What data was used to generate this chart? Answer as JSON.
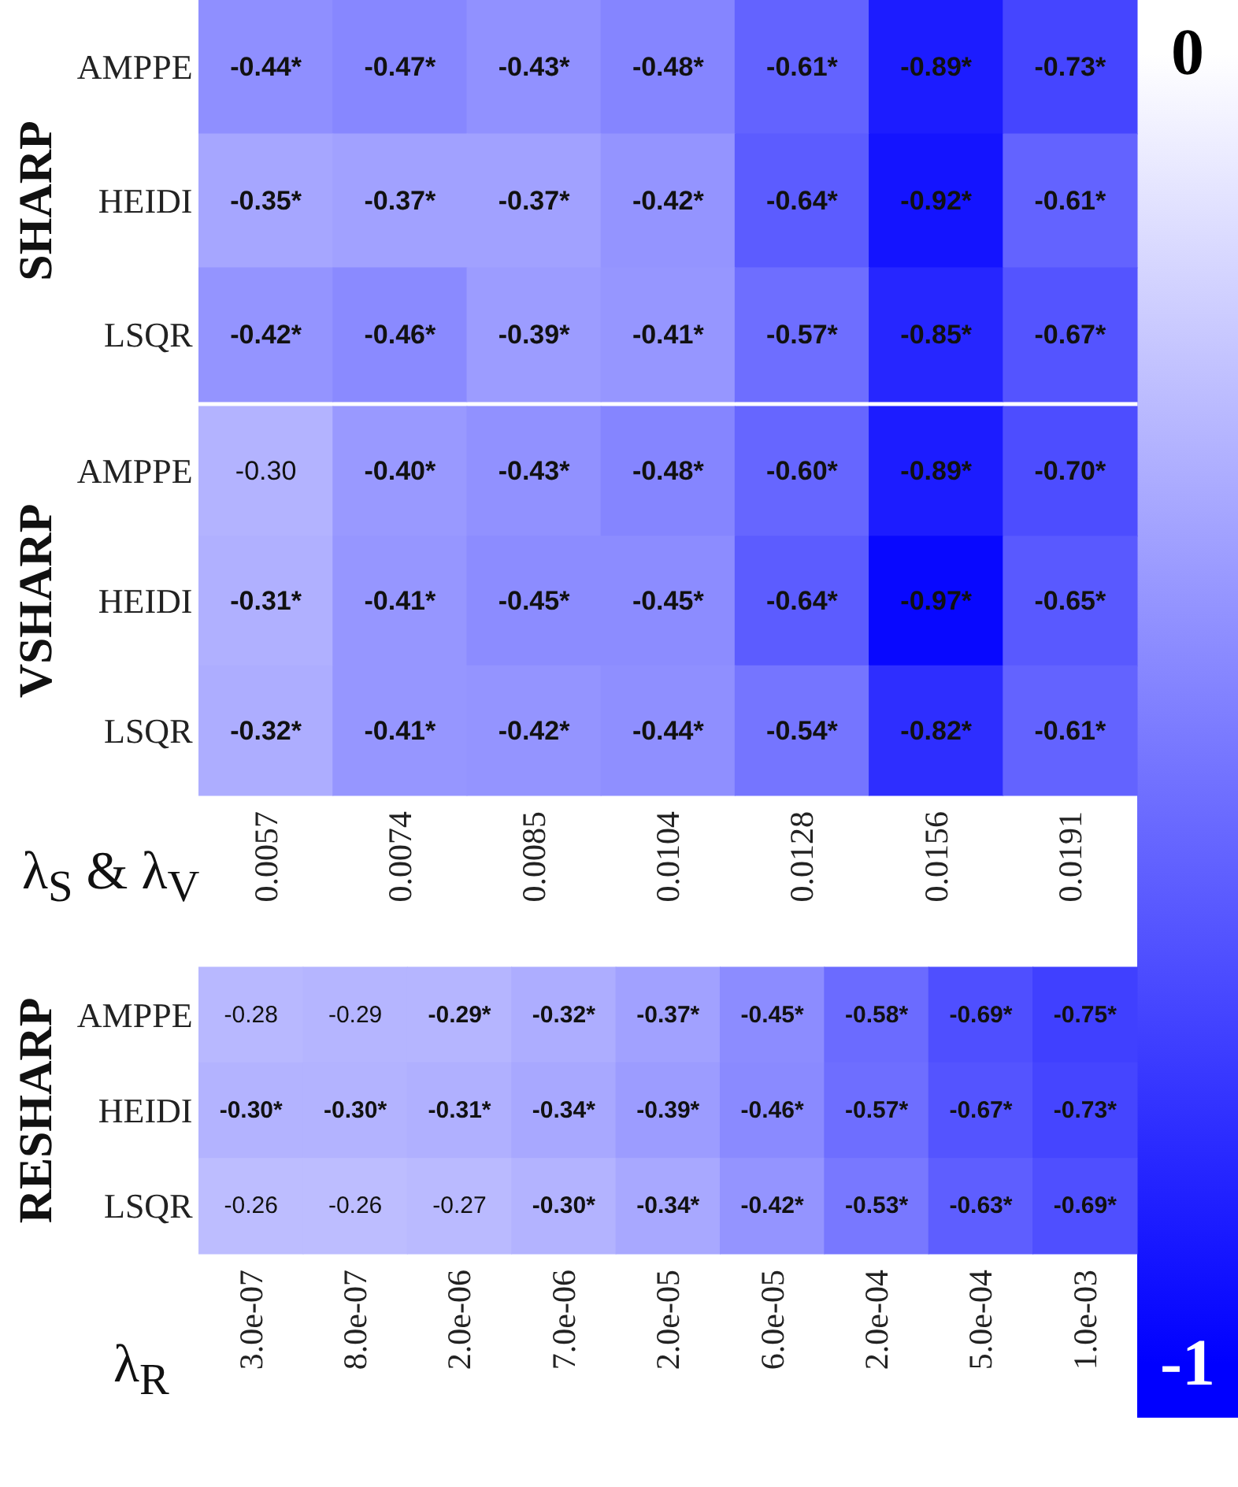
{
  "chart_data": [
    {
      "type": "heatmap",
      "ylabel": "SHARP",
      "categories": [
        "0.0057",
        "0.0074",
        "0.0085",
        "0.0104",
        "0.0128",
        "0.0156",
        "0.0191"
      ],
      "y_categories": [
        "AMPPE",
        "HEIDI",
        "LSQR"
      ],
      "tick_labels": "y",
      "cells": [
        [
          -0.44,
          -0.47,
          -0.43,
          -0.48,
          -0.61,
          -0.89,
          -0.73
        ],
        [
          -0.35,
          -0.37,
          -0.37,
          -0.42,
          -0.64,
          -0.92,
          -0.61
        ],
        [
          -0.42,
          -0.46,
          -0.39,
          -0.41,
          -0.57,
          -0.85,
          -0.67
        ]
      ],
      "cell_labels": [
        [
          "-0.44*",
          "-0.47*",
          "-0.43*",
          "-0.48*",
          "-0.61*",
          "-0.89*",
          "-0.73*"
        ],
        [
          "-0.35*",
          "-0.37*",
          "-0.37*",
          "-0.42*",
          "-0.64*",
          "-0.92*",
          "-0.61*"
        ],
        [
          "-0.42*",
          "-0.46*",
          "-0.39*",
          "-0.41*",
          "-0.57*",
          "-0.85*",
          "-0.67*"
        ]
      ],
      "clim": [
        -1,
        0
      ],
      "cticks": [
        -1,
        0
      ]
    },
    {
      "type": "heatmap",
      "ylabel": "VSHARP",
      "xlabel": "λ$_{S}$ & λ$_{V}$",
      "categories": [
        "0.0057",
        "0.0074",
        "0.0085",
        "0.0104",
        "0.0128",
        "0.0156",
        "0.0191"
      ],
      "y_categories": [
        "AMPPE",
        "HEIDI",
        "LSQR"
      ],
      "cells": [
        [
          -0.3,
          -0.4,
          -0.43,
          -0.48,
          -0.6,
          -0.89,
          -0.7
        ],
        [
          -0.31,
          -0.41,
          -0.45,
          -0.45,
          -0.64,
          -0.97,
          -0.65
        ],
        [
          -0.32,
          -0.41,
          -0.42,
          -0.44,
          -0.54,
          -0.82,
          -0.61
        ]
      ],
      "cell_labels": [
        [
          "-0.30",
          "-0.40*",
          "-0.43*",
          "-0.48*",
          "-0.60*",
          "-0.89*",
          "-0.70*"
        ],
        [
          "-0.31*",
          "-0.41*",
          "-0.45*",
          "-0.45*",
          "-0.64*",
          "-0.97*",
          "-0.65*"
        ],
        [
          "-0.32*",
          "-0.41*",
          "-0.42*",
          "-0.44*",
          "-0.54*",
          "-0.82*",
          "-0.61*"
        ]
      ]
    },
    {
      "type": "heatmap",
      "ylabel": "RESHARP",
      "xlabel": "λ$_{R}$",
      "categories": [
        "3.0e-07",
        "8.0e-07",
        "2.0e-06",
        "7.0e-06",
        "2.0e-05",
        "6.0e-05",
        "2.0e-04",
        "5.0e-04",
        "1.0e-03"
      ],
      "y_categories": [
        "AMPPE",
        "HEIDI",
        "LSQR"
      ],
      "cells": [
        [
          -0.28,
          -0.29,
          -0.29,
          -0.32,
          -0.37,
          -0.45,
          -0.58,
          -0.69,
          -0.75
        ],
        [
          -0.3,
          -0.3,
          -0.31,
          -0.34,
          -0.39,
          -0.46,
          -0.57,
          -0.67,
          -0.73
        ],
        [
          -0.26,
          -0.26,
          -0.27,
          -0.3,
          -0.34,
          -0.42,
          -0.53,
          -0.63,
          -0.69
        ]
      ],
      "cell_labels": [
        [
          "-0.28",
          "-0.29",
          "-0.29*",
          "-0.32*",
          "-0.37*",
          "-0.45*",
          "-0.58*",
          "-0.69*",
          "-0.75*"
        ],
        [
          "-0.30*",
          "-0.30*",
          "-0.31*",
          "-0.34*",
          "-0.39*",
          "-0.46*",
          "-0.57*",
          "-0.67*",
          "-0.73*"
        ],
        [
          "-0.26",
          "-0.26",
          "-0.27",
          "-0.30*",
          "-0.34*",
          "-0.42*",
          "-0.53*",
          "-0.63*",
          "-0.69*"
        ]
      ]
    }
  ]
}
